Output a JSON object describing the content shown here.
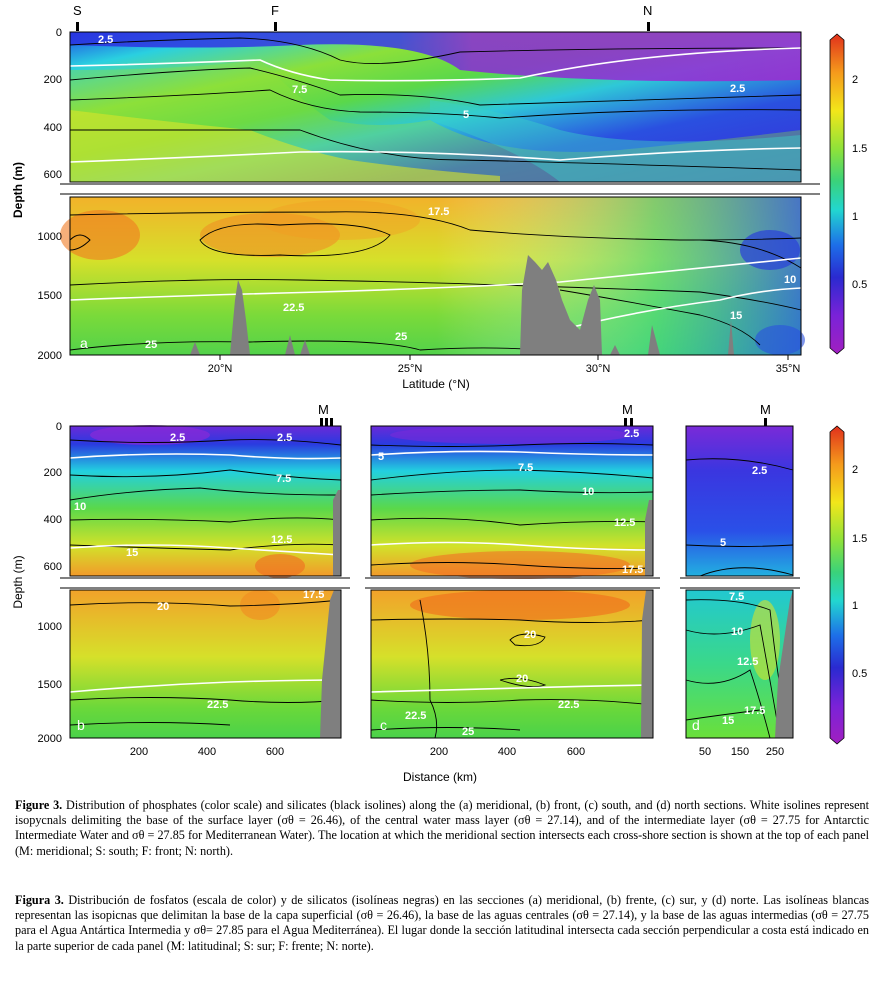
{
  "panel_a": {
    "letter": "a",
    "top_markers": [
      "S",
      "F",
      "N"
    ],
    "y_ticks_upper": [
      "0",
      "200",
      "400",
      "600"
    ],
    "y_ticks_lower": [
      "1000",
      "1500",
      "2000"
    ],
    "x_ticks": [
      "20°N",
      "25°N",
      "30°N",
      "35°N"
    ],
    "x_label": "Latitude (°N)",
    "y_label": "Depth (m)",
    "isoline_labels": [
      "2.5",
      "7.5",
      "5",
      "2.5",
      "17.5",
      "10",
      "22.5",
      "15",
      "25",
      "25"
    ]
  },
  "panel_b": {
    "letter": "b",
    "top_marker": "M",
    "x_ticks": [
      "200",
      "400",
      "600"
    ],
    "isoline_labels": [
      "2.5",
      "2.5",
      "7.5",
      "10",
      "12.5",
      "15",
      "20",
      "17.5",
      "22.5"
    ]
  },
  "panel_c": {
    "letter": "c",
    "top_marker": "M",
    "x_ticks": [
      "200",
      "400",
      "600"
    ],
    "isoline_labels": [
      "2.5",
      "5",
      "7.5",
      "10",
      "12.5",
      "17.5",
      "20",
      "20",
      "22.5",
      "22.5",
      "25"
    ]
  },
  "panel_d": {
    "letter": "d",
    "top_marker": "M",
    "x_ticks": [
      "50",
      "150",
      "250"
    ],
    "isoline_labels": [
      "2.5",
      "5",
      "7.5",
      "10",
      "12.5",
      "17.5",
      "15"
    ]
  },
  "bottom_axes": {
    "y_label": "Depth (m)",
    "x_label": "Distance (km)",
    "y_ticks_upper": [
      "0",
      "200",
      "400",
      "600"
    ],
    "y_ticks_lower": [
      "1000",
      "1500",
      "2000"
    ]
  },
  "colorbar": {
    "ticks": [
      "2",
      "1.5",
      "1",
      "0.5"
    ],
    "colors": [
      "#e8401c",
      "#f59a1c",
      "#f2e61a",
      "#4bd23a",
      "#22d6c8",
      "#1d6ee8",
      "#2a2ad0",
      "#7a22d8",
      "#a020c8"
    ]
  },
  "caption_en": {
    "fig_label": "Figure 3.",
    "text": "Distribution of phosphates (color scale) and silicates (black isolines) along the (a) meridional, (b) front, (c) south, and (d) north sections. White isolines represent isopycnals delimiting the base of the surface layer (σθ = 26.46), of the central water mass layer (σθ = 27.14), and of the intermediate layer (σθ = 27.75 for Antarctic Intermediate Water and σθ = 27.85 for Mediterranean Water). The location at which the meridional section intersects each cross-shore section is shown at the top of each panel (M: meridional; S: south; F: front; N: north)."
  },
  "caption_es": {
    "fig_label": "Figura 3.",
    "text": "Distribución de fosfatos (escala de color) y de silicatos (isolíneas negras) en las secciones (a) meridional, (b) frente, (c) sur, y (d) norte. Las isolíneas blancas representan las isopicnas que delimitan la base de la capa superficial (σθ = 26.46), la base de las aguas centrales (σθ = 27.14), y la base de las aguas intermedias (σθ = 27.75 para el Agua Antártica Intermedia y σθ= 27.85 para el Agua Mediterránea). El lugar donde la sección latitudinal intersecta cada sección perpendicular a costa está indicado en la parte superior de cada panel (M: latitudinal; S: sur; F: frente; N: norte)."
  }
}
